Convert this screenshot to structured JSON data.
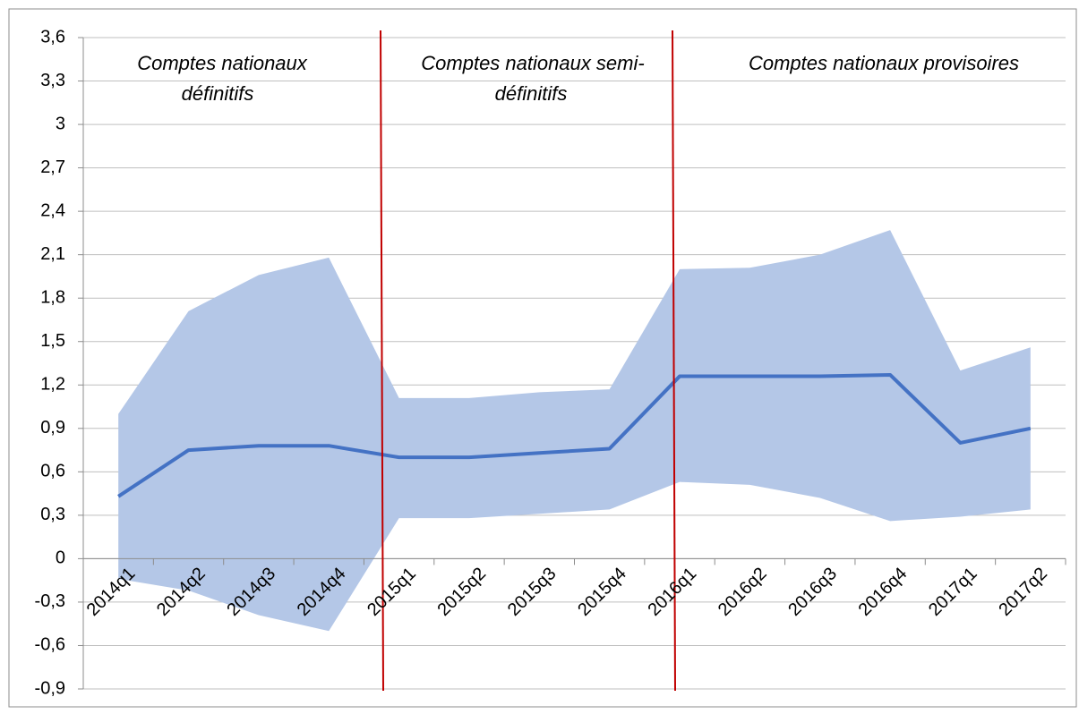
{
  "chart_data": {
    "type": "band-line",
    "categories": [
      "2014q1",
      "2014q2",
      "2014q3",
      "2014q4",
      "2015q1",
      "2015q2",
      "2015q3",
      "2015q4",
      "2016q1",
      "2016q2",
      "2016q3",
      "2016q4",
      "2017q1",
      "2017q2"
    ],
    "values": [
      0.43,
      0.75,
      0.78,
      0.78,
      0.7,
      0.7,
      0.73,
      0.76,
      1.26,
      1.26,
      1.26,
      1.27,
      0.8,
      0.9
    ],
    "upper": [
      1.0,
      1.71,
      1.96,
      2.08,
      1.11,
      1.11,
      1.15,
      1.17,
      2.0,
      2.01,
      2.1,
      2.27,
      1.3,
      1.46
    ],
    "lower": [
      -0.14,
      -0.22,
      -0.39,
      -0.5,
      0.28,
      0.28,
      0.31,
      0.34,
      0.53,
      0.51,
      0.42,
      0.26,
      0.29,
      0.34
    ],
    "color": "#4472c4",
    "band_color": "#b4c7e7",
    "ylim": [
      -0.9,
      3.6
    ],
    "yticks": [
      {
        "value": -0.9,
        "label": "-0,9"
      },
      {
        "value": -0.6,
        "label": "-0,6"
      },
      {
        "value": -0.3,
        "label": "-0,3"
      },
      0,
      {
        "value": 0.3,
        "label": "0,3"
      },
      {
        "value": 0.6,
        "label": "0,6"
      },
      {
        "value": 0.9,
        "label": "0,9"
      },
      {
        "value": 1.2,
        "label": "1,2"
      },
      {
        "value": 1.5,
        "label": "1,5"
      },
      {
        "value": 1.8,
        "label": "1,8"
      },
      {
        "value": 2.1,
        "label": "2,1"
      },
      {
        "value": 2.4,
        "label": "2,4"
      },
      {
        "value": 2.7,
        "label": "2,7"
      },
      3,
      {
        "value": 3.3,
        "label": "3,3"
      },
      {
        "value": 3.6,
        "label": "3,6"
      }
    ],
    "grid": true,
    "annotations": [
      {
        "lines": [
          "Comptes nationaux",
          "définitifs"
        ]
      },
      {
        "lines": [
          "Comptes nationaux semi-",
          "définitifs"
        ]
      },
      {
        "lines": [
          "Comptes nationaux provisoires"
        ]
      }
    ]
  }
}
